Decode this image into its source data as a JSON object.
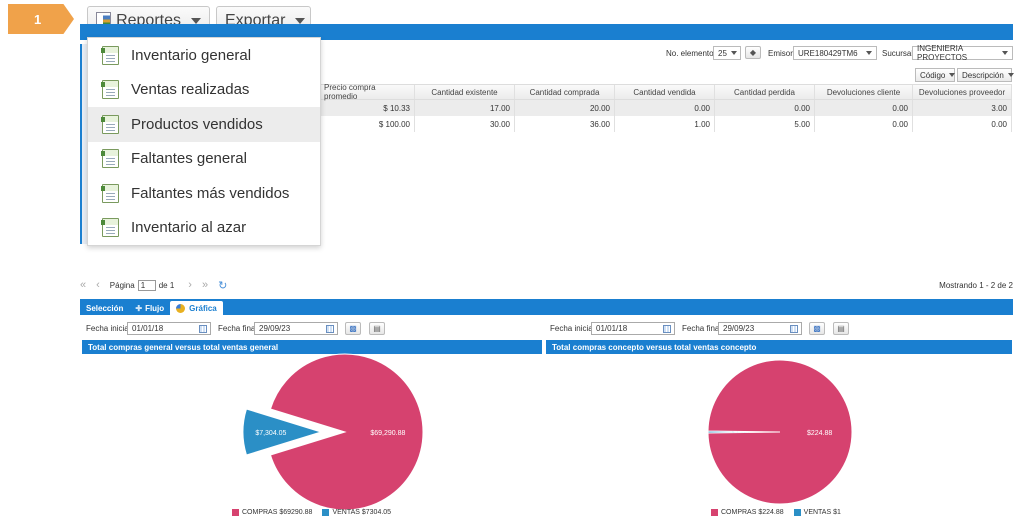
{
  "step_badge": "1",
  "toolbar": {
    "reportes_label": "Reportes",
    "exportar_label": "Exportar"
  },
  "reportes_menu": {
    "items": [
      {
        "label": "Inventario general"
      },
      {
        "label": "Ventas realizadas"
      },
      {
        "label": "Productos vendidos"
      },
      {
        "label": "Faltantes general"
      },
      {
        "label": "Faltantes más vendidos"
      },
      {
        "label": "Inventario al azar"
      }
    ],
    "active_index": 2
  },
  "filters": {
    "no_elementos_label": "No. elementos",
    "no_elementos_value": "25",
    "emisor_label": "Emisor",
    "emisor_value": "URE180429TM6",
    "sucursal_label": "Sucursal",
    "sucursal_value": "INGENIERIA PROYECTOS"
  },
  "column_toggles": {
    "codigo": "Código",
    "descripcion": "Descripción"
  },
  "table": {
    "headers": [
      "Precio compra promedio",
      "Cantidad existente",
      "Cantidad comprada",
      "Cantidad vendida",
      "Cantidad perdida",
      "Devoluciones cliente",
      "Devoluciones proveedor"
    ],
    "rows": [
      [
        "$ 10.33",
        "17.00",
        "20.00",
        "0.00",
        "0.00",
        "0.00",
        "3.00"
      ],
      [
        "$ 100.00",
        "30.00",
        "36.00",
        "1.00",
        "5.00",
        "0.00",
        "0.00"
      ]
    ]
  },
  "pager": {
    "page_label": "Página",
    "page_value": "1",
    "of_label": "de 1",
    "showing": "Mostrando 1 - 2 de 2"
  },
  "tabs": [
    {
      "label": "Selección"
    },
    {
      "label": "Flujo"
    },
    {
      "label": "Gráfica"
    }
  ],
  "charts_panel": {
    "fecha_inicial_label": "Fecha inicial",
    "fecha_inicial_value": "01/01/18",
    "fecha_final_label": "Fecha final",
    "fecha_final_value": "29/09/23"
  },
  "colors": {
    "compras": "#d6426f",
    "ventas": "#2b8fc6",
    "accent_blue": "#1a7fd0"
  },
  "chart_data": [
    {
      "type": "pie",
      "title": "Total compras general versus total ventas general",
      "slices": [
        {
          "name": "COMPRAS",
          "value": 69290.88,
          "label": "$69,290.88",
          "legend": "COMPRAS $69290.88",
          "color": "#d6426f"
        },
        {
          "name": "VENTAS",
          "value": 7304.05,
          "label": "$7,304.05",
          "legend": "VENTAS $7304.05",
          "color": "#2b8fc6",
          "exploded": true
        }
      ]
    },
    {
      "type": "pie",
      "title": "Total compras concepto versus total ventas concepto",
      "slices": [
        {
          "name": "COMPRAS",
          "value": 224.88,
          "label": "$224.88",
          "legend": "COMPRAS $224.88",
          "color": "#d6426f"
        },
        {
          "name": "VENTAS",
          "value": 1,
          "label": "$1.00",
          "legend": "VENTAS $1",
          "color": "#2b8fc6"
        }
      ]
    }
  ]
}
